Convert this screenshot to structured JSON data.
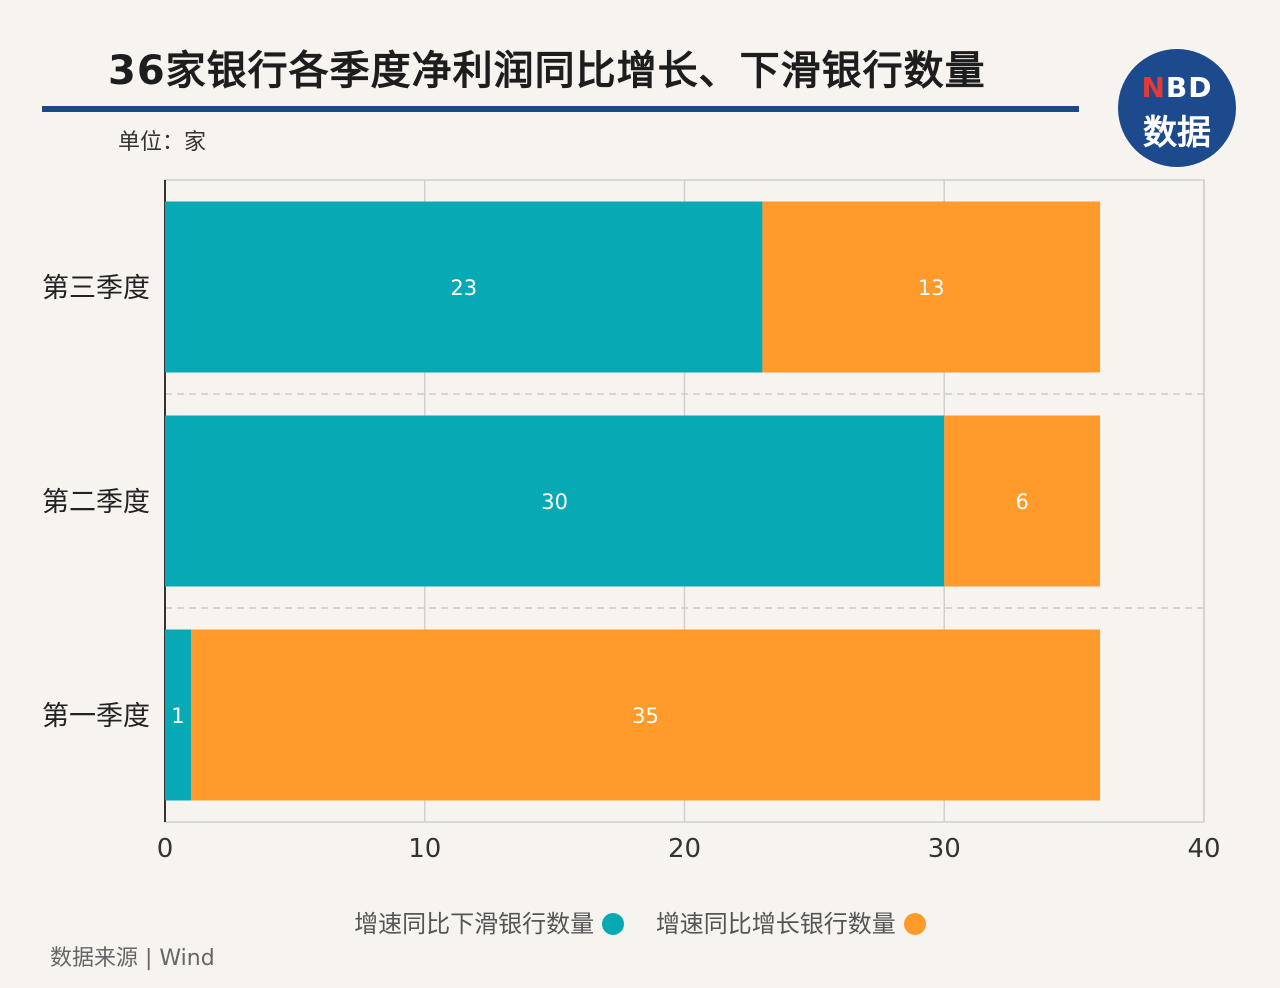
{
  "title": "36家银行各季度净利润同比增长、下滑银行数量",
  "unit": "单位：家",
  "logo": {
    "top_n": "N",
    "top_bd": "BD",
    "bottom": "数据"
  },
  "source": "数据来源 | Wind",
  "colors": {
    "decline": "#06a9b4",
    "growth": "#ff9a2b",
    "title_rule": "#1b4a8a",
    "logo_bg": "#1c4a8c"
  },
  "chart_data": {
    "type": "bar",
    "orientation": "horizontal",
    "stacked": true,
    "categories": [
      "第三季度",
      "第二季度",
      "第一季度"
    ],
    "series": [
      {
        "name": "增速同比下滑银行数量",
        "values": [
          23,
          30,
          1
        ]
      },
      {
        "name": "增速同比增长银行数量",
        "values": [
          13,
          6,
          35
        ]
      }
    ],
    "xlim": [
      0,
      40
    ],
    "xticks": [
      "0",
      "10",
      "20",
      "30",
      "40"
    ],
    "grid": true,
    "data_labels": true,
    "legend_position": "bottom"
  }
}
